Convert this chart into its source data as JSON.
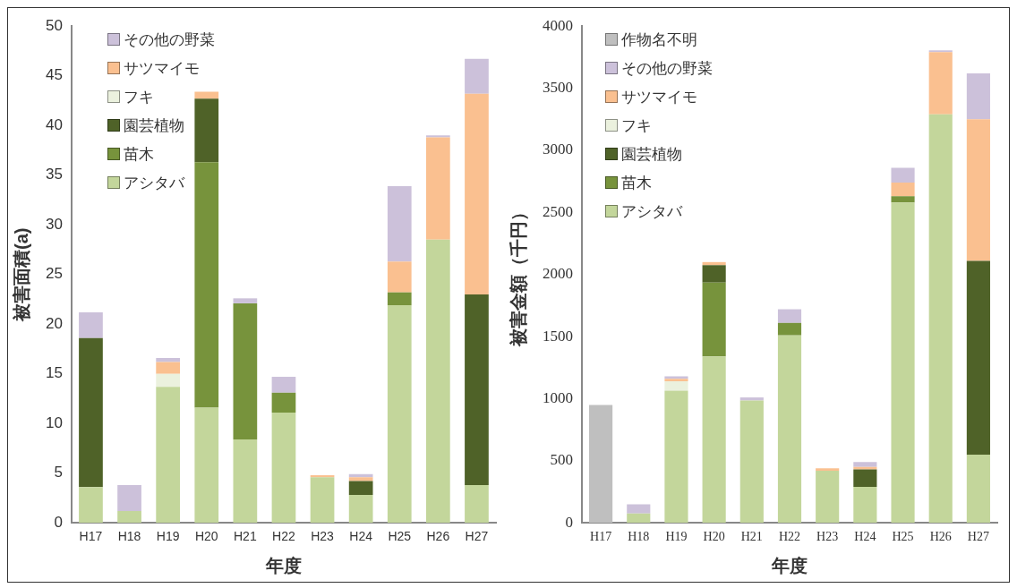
{
  "chart_data": [
    {
      "type": "bar",
      "stacked": true,
      "xlabel": "年度",
      "ylabel": "被害面積(a)",
      "categories": [
        "H17",
        "H18",
        "H19",
        "H20",
        "H21",
        "H22",
        "H23",
        "H24",
        "H25",
        "H26",
        "H27"
      ],
      "ylim": [
        0,
        50
      ],
      "yticks": [
        0,
        5,
        10,
        15,
        20,
        25,
        30,
        35,
        40,
        45,
        50
      ],
      "grid": false,
      "legend": "top left",
      "series": [
        {
          "name": "アシタバ",
          "color": "#c3d69b",
          "values": [
            3.6,
            1.2,
            13.7,
            11.6,
            8.4,
            11.1,
            4.6,
            2.8,
            21.9,
            28.5,
            3.8
          ]
        },
        {
          "name": "苗木",
          "color": "#77933c",
          "values": [
            null,
            null,
            null,
            24.7,
            13.7,
            2.0,
            null,
            null,
            1.3,
            null,
            null
          ]
        },
        {
          "name": "園芸植物",
          "color": "#4f6228",
          "values": [
            15.0,
            null,
            null,
            6.4,
            null,
            null,
            null,
            1.4,
            null,
            null,
            19.2
          ]
        },
        {
          "name": "フキ",
          "color": "#ebf1de",
          "values": [
            null,
            null,
            1.3,
            null,
            null,
            null,
            null,
            null,
            null,
            null,
            null
          ]
        },
        {
          "name": "サツマイモ",
          "color": "#fac090",
          "values": [
            null,
            null,
            1.2,
            0.7,
            null,
            null,
            0.2,
            0.4,
            3.1,
            10.3,
            20.2
          ]
        },
        {
          "name": "その他の野菜",
          "color": "#ccc1da",
          "values": [
            2.6,
            2.6,
            0.4,
            null,
            0.5,
            1.6,
            null,
            0.3,
            7.6,
            0.2,
            3.5
          ]
        }
      ]
    },
    {
      "type": "bar",
      "stacked": true,
      "xlabel": "年度",
      "ylabel": "被害金額（千円）",
      "categories": [
        "H17",
        "H18",
        "H19",
        "H20",
        "H21",
        "H22",
        "H23",
        "H24",
        "H25",
        "H26",
        "H27"
      ],
      "ylim": [
        0,
        4000
      ],
      "yticks": [
        0,
        500,
        1000,
        1500,
        2000,
        2500,
        3000,
        3500,
        4000
      ],
      "grid": false,
      "legend": "top left",
      "series": [
        {
          "name": "アシタバ",
          "color": "#c3d69b",
          "values": [
            null,
            75,
            1065,
            1340,
            985,
            1510,
            420,
            290,
            2580,
            3290,
            550
          ]
        },
        {
          "name": "苗木",
          "color": "#77933c",
          "values": [
            null,
            null,
            null,
            595,
            null,
            100,
            null,
            null,
            50,
            null,
            null
          ]
        },
        {
          "name": "園芸植物",
          "color": "#4f6228",
          "values": [
            null,
            null,
            null,
            140,
            null,
            null,
            null,
            140,
            null,
            null,
            1560
          ]
        },
        {
          "name": "フキ",
          "color": "#ebf1de",
          "values": [
            null,
            null,
            75,
            null,
            null,
            null,
            null,
            null,
            null,
            null,
            null
          ]
        },
        {
          "name": "サツマイモ",
          "color": "#fac090",
          "values": [
            null,
            null,
            20,
            25,
            null,
            null,
            20,
            20,
            110,
            500,
            1140
          ]
        },
        {
          "name": "その他の野菜",
          "color": "#ccc1da",
          "values": [
            null,
            75,
            20,
            null,
            25,
            110,
            null,
            40,
            120,
            15,
            370
          ]
        },
        {
          "name": "作物名不明",
          "color": "#bfbfbf",
          "values": [
            950,
            null,
            null,
            null,
            null,
            null,
            null,
            null,
            null,
            null,
            null
          ]
        }
      ]
    }
  ]
}
